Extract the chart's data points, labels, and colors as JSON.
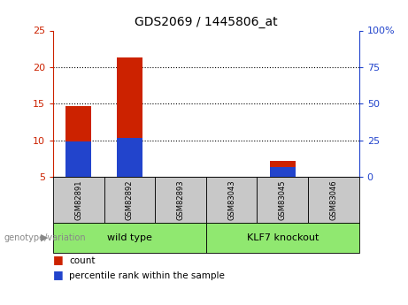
{
  "title": "GDS2069 / 1445806_at",
  "samples": [
    "GSM82891",
    "GSM82892",
    "GSM82893",
    "GSM83043",
    "GSM83045",
    "GSM83046"
  ],
  "count_values": [
    14.7,
    21.3,
    5.0,
    5.0,
    7.2,
    5.0
  ],
  "percentile_values": [
    9.8,
    10.3,
    5.0,
    5.0,
    6.3,
    5.0
  ],
  "ylim_left": [
    5,
    25
  ],
  "yticks_left": [
    5,
    10,
    15,
    20,
    25
  ],
  "yticks_right": [
    0,
    25,
    50,
    75,
    100
  ],
  "ytick_labels_right": [
    "0",
    "25",
    "50",
    "75",
    "100%"
  ],
  "groups": [
    {
      "label": "wild type",
      "start": 0,
      "end": 3
    },
    {
      "label": "KLF7 knockout",
      "start": 3,
      "end": 6
    }
  ],
  "group_label_prefix": "genotype/variation",
  "color_count": "#cc2200",
  "color_percentile": "#2244cc",
  "color_sample_bg": "#c8c8c8",
  "color_group_bg": "#90e870",
  "legend_count": "count",
  "legend_percentile": "percentile rank within the sample",
  "bar_width": 0.5,
  "dotted_lines": [
    10,
    15,
    20
  ],
  "title_fontsize": 10
}
